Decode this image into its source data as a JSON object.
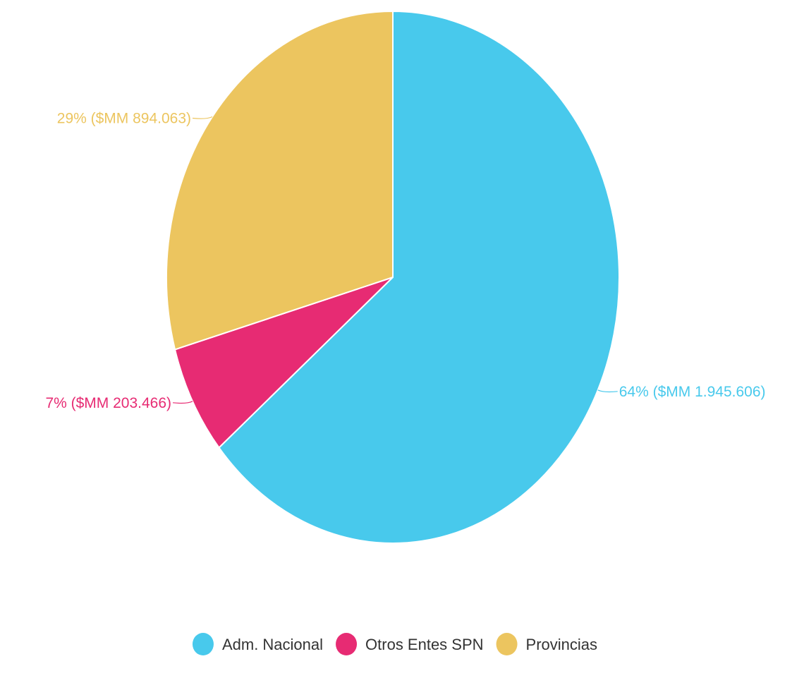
{
  "chart_data": {
    "type": "pie",
    "categories": [
      "Adm. Nacional",
      "Otros Entes SPN",
      "Provincias"
    ],
    "values": [
      1945606,
      203466,
      894063
    ],
    "percentages": [
      64,
      7,
      29
    ],
    "data_labels": [
      "64% ($MM 1.945.606)",
      "7% ($MM 203.466)",
      "29% ($MM 894.063)"
    ],
    "colors": [
      "#48c9ec",
      "#e72b73",
      "#ecc55f"
    ],
    "legend_position": "bottom",
    "start": "top",
    "direction": "clockwise"
  }
}
